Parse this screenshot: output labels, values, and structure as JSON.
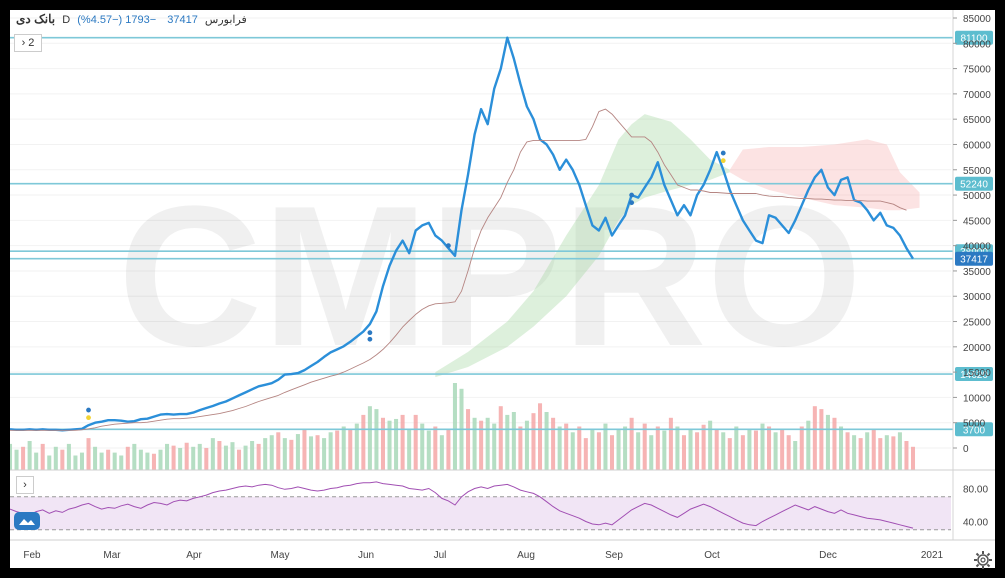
{
  "legend": {
    "symbol": "بانک دی",
    "interval": "D",
    "exchange": "فرابورس",
    "last": "37417",
    "change": "−1793 (−4.57%)"
  },
  "toolbar": {
    "indicators_toggle": "›  2",
    "rsi_toggle": "›"
  },
  "watermark": "CMPRO",
  "chart_data": {
    "type": "line",
    "x_labels": [
      "Feb",
      "Mar",
      "Apr",
      "May",
      "Jun",
      "Jul",
      "Aug",
      "Sep",
      "Oct",
      "Dec",
      "2021"
    ],
    "price_axis": {
      "ylim": [
        0,
        85000
      ],
      "ticks": [
        0,
        5000,
        10000,
        15000,
        20000,
        25000,
        30000,
        35000,
        40000,
        45000,
        50000,
        55000,
        60000,
        65000,
        70000,
        75000,
        80000,
        85000
      ]
    },
    "horizontal_levels": [
      {
        "label": "81100",
        "value": 81100
      },
      {
        "label": "52240",
        "value": 52240
      },
      {
        "label": "38900",
        "value": 38900
      },
      {
        "label": "37417",
        "value": 37417,
        "current": true
      },
      {
        "label": "14620",
        "value": 14620
      },
      {
        "label": "3700",
        "value": 3700
      }
    ],
    "series": [
      {
        "values": [
          3700,
          3600,
          3600,
          3700,
          3600,
          3700,
          3600,
          3600,
          3500,
          3600,
          3700,
          3800,
          4500,
          5000,
          5200,
          5500,
          5500,
          5400,
          5200,
          5300,
          5700,
          5800,
          6200,
          6600,
          6700,
          6600,
          6700,
          6700,
          7000,
          7500,
          7900,
          8300,
          8800,
          9200,
          9800,
          10400,
          11000,
          11600,
          12200,
          12500,
          12800,
          13500,
          14500,
          14600,
          14800,
          15400,
          16200,
          17000,
          18000,
          18900,
          19500,
          20100,
          21000,
          22000,
          23000,
          24500,
          27000,
          32000,
          36000,
          39000,
          41000,
          38500,
          43000,
          44000,
          44500,
          42000,
          41000,
          39500,
          38000,
          47000,
          54000,
          62000,
          67000,
          64000,
          71000,
          75000,
          81100,
          77000,
          72000,
          67500,
          65000,
          61000,
          60000,
          58000,
          55000,
          57000,
          55000,
          52000,
          48000,
          44000,
          43000,
          45500,
          42000,
          44000,
          46000,
          50000,
          49500,
          51500,
          53500,
          56500,
          52000,
          49000,
          46000,
          48000,
          46000,
          50000,
          52000,
          55000,
          58500,
          55000,
          51000,
          48000,
          45000,
          43000,
          41000,
          40500,
          46000,
          45500,
          44000,
          42500,
          45000,
          48000,
          51000,
          53500,
          55000,
          51500,
          50000,
          53000,
          53500,
          49000,
          48500,
          47000,
          45000,
          46500,
          44000,
          43500,
          42000,
          39500,
          37417
        ]
      },
      {
        "values": [
          3500,
          3500,
          3500,
          3500,
          3500,
          3500,
          3500,
          3500,
          3500,
          3500,
          3500,
          3600,
          3800,
          4000,
          4300,
          4500,
          4700,
          4800,
          4900,
          5000,
          5000,
          5100,
          5300,
          5500,
          5700,
          5800,
          5800,
          5900,
          6000,
          6200,
          6400,
          6600,
          6800,
          7100,
          7400,
          7800,
          8200,
          8700,
          9200,
          9600,
          10000,
          10400,
          11000,
          11500,
          12000,
          12500,
          13000,
          13400,
          13800,
          14200,
          14500,
          15000,
          15600,
          16200,
          16800,
          17500,
          18400,
          19500,
          20800,
          22300,
          23900,
          25200,
          26400,
          27400,
          28100,
          28500,
          28600,
          28700,
          28900,
          31000,
          35000,
          39500,
          43000,
          45500,
          47500,
          49500,
          52500,
          55000,
          58500,
          60500,
          60800,
          60800,
          60800,
          60800,
          60800,
          60800,
          60800,
          60800,
          61000,
          63500,
          66500,
          67000,
          66000,
          64500,
          63000,
          61500,
          61500,
          61500,
          60500,
          58500,
          56000,
          54000,
          52000,
          51500,
          51000,
          51000,
          50800,
          50500,
          50500,
          50400,
          50300,
          50300,
          50300,
          50300,
          50300,
          50000,
          49800,
          49700,
          49700,
          49500,
          49400,
          49300,
          49300,
          49200,
          49200,
          49100,
          49000,
          49000,
          48900,
          48900,
          48900,
          48800,
          48800,
          48800,
          48500,
          48200,
          47500,
          47000
        ]
      }
    ],
    "dots": [
      {
        "i": 12,
        "value": 7500,
        "color": "#2b79c2"
      },
      {
        "i": 12,
        "value": 6000,
        "color": "#f2d434"
      },
      {
        "i": 55,
        "value": 22800,
        "color": "#2b79c2"
      },
      {
        "i": 55,
        "value": 21500,
        "color": "#2b79c2"
      },
      {
        "i": 67,
        "value": 40000,
        "color": "#2b79c2"
      },
      {
        "i": 95,
        "value": 50000,
        "color": "#2b79c2"
      },
      {
        "i": 95,
        "value": 48500,
        "color": "#2b79c2"
      },
      {
        "i": 109,
        "value": 58300,
        "color": "#2b79c2"
      },
      {
        "i": 109,
        "value": 56800,
        "color": "#f2d434"
      }
    ],
    "cloud_green": {
      "upper": [
        [
          65,
          15000
        ],
        [
          70,
          19000
        ],
        [
          76,
          25000
        ],
        [
          80,
          31000
        ],
        [
          85,
          42000
        ],
        [
          90,
          52000
        ],
        [
          93,
          61000
        ],
        [
          95,
          64000
        ],
        [
          97,
          66000
        ],
        [
          101,
          64500
        ],
        [
          104,
          61000
        ],
        [
          107,
          57000
        ],
        [
          110,
          55000
        ]
      ],
      "lower": [
        [
          65,
          14000
        ],
        [
          70,
          16000
        ],
        [
          76,
          20000
        ],
        [
          80,
          24000
        ],
        [
          85,
          30000
        ],
        [
          90,
          38000
        ],
        [
          93,
          45000
        ],
        [
          95,
          48000
        ],
        [
          97,
          49500
        ],
        [
          101,
          51000
        ],
        [
          104,
          52000
        ],
        [
          107,
          53000
        ],
        [
          110,
          54500
        ]
      ]
    },
    "cloud_red": {
      "upper": [
        [
          110,
          55000
        ],
        [
          112,
          59000
        ],
        [
          116,
          59500
        ],
        [
          121,
          59500
        ],
        [
          126,
          60000
        ],
        [
          131,
          61000
        ],
        [
          134,
          60000
        ],
        [
          136,
          54500
        ],
        [
          139,
          50500
        ]
      ],
      "lower": [
        [
          110,
          54500
        ],
        [
          112,
          53000
        ],
        [
          116,
          51000
        ],
        [
          121,
          49500
        ],
        [
          126,
          48000
        ],
        [
          131,
          47500
        ],
        [
          134,
          47000
        ],
        [
          136,
          47000
        ],
        [
          139,
          47500
        ]
      ]
    },
    "volume": {
      "colors": {
        "up": "#a8d8b9",
        "down": "#f4a7a7"
      },
      "ticks": [
        0,
        5000,
        10000
      ],
      "values": [
        4500,
        3500,
        4000,
        5000,
        3000,
        4500,
        2500,
        4000,
        3500,
        4500,
        2500,
        3000,
        5500,
        4000,
        3000,
        3500,
        3000,
        2500,
        4000,
        4500,
        3500,
        3000,
        2800,
        3500,
        4500,
        4200,
        3800,
        4700,
        4000,
        4500,
        3800,
        5500,
        5000,
        4200,
        4800,
        3500,
        4200,
        5000,
        4500,
        5500,
        6000,
        6500,
        5500,
        5200,
        6200,
        7000,
        5800,
        6000,
        5500,
        6500,
        6800,
        7500,
        7000,
        8000,
        9500,
        11000,
        10500,
        9000,
        8500,
        8800,
        9500,
        7000,
        9500,
        8000,
        6800,
        7500,
        6000,
        7000,
        15000,
        14000,
        10500,
        9000,
        8500,
        9000,
        8000,
        11000,
        9500,
        10000,
        7500,
        8500,
        9800,
        11500,
        10000,
        9000,
        7500,
        8000,
        6500,
        7500,
        5500,
        7000,
        6500,
        8000,
        6000,
        7000,
        7500,
        9000,
        6500,
        8000,
        6000,
        7500,
        6800,
        9000,
        7500,
        6000,
        7000,
        6500,
        7800,
        8500,
        7000,
        6500,
        5500,
        7500,
        6000,
        7000,
        6800,
        8000,
        7500,
        6500,
        7000,
        6000,
        5000,
        7500,
        8500,
        11000,
        10500,
        9500,
        9000,
        7500,
        6500,
        6000,
        5500,
        6500,
        7000,
        5500,
        6000,
        5800,
        6500,
        5000,
        4000
      ],
      "up": [
        true,
        true,
        false,
        true,
        true,
        false,
        true,
        true,
        false,
        true,
        true,
        true,
        false,
        true,
        true,
        false,
        true,
        true,
        false,
        true,
        true,
        true,
        false,
        true,
        true,
        false,
        true,
        false,
        true,
        true,
        false,
        true,
        false,
        true,
        true,
        false,
        true,
        true,
        false,
        true,
        true,
        false,
        true,
        false,
        true,
        false,
        true,
        false,
        true,
        true,
        false,
        true,
        false,
        true,
        false,
        true,
        true,
        false,
        true,
        true,
        false,
        true,
        false,
        true,
        true,
        false,
        true,
        false,
        true,
        true,
        false,
        true,
        false,
        true,
        true,
        false,
        true,
        true,
        false,
        true,
        false,
        false,
        true,
        false,
        true,
        false,
        true,
        false,
        false,
        true,
        false,
        true,
        false,
        true,
        true,
        false,
        true,
        false,
        true,
        false,
        true,
        false,
        true,
        false,
        true,
        false,
        false,
        true,
        false,
        true,
        false,
        true,
        false,
        true,
        false,
        true,
        false,
        true,
        false,
        false,
        true,
        false,
        true,
        false,
        false,
        true,
        false,
        true,
        false,
        true,
        false,
        true,
        false,
        false,
        true,
        false,
        true,
        false,
        false
      ]
    },
    "rsi": {
      "ticks": [
        80,
        40
      ],
      "tick_labels": [
        "80.00",
        "40.00"
      ],
      "band": [
        30,
        70
      ],
      "ylim": [
        20,
        100
      ],
      "values": [
        55,
        52,
        50,
        48,
        52,
        54,
        50,
        53,
        51,
        55,
        57,
        60,
        62,
        58,
        55,
        57,
        56,
        59,
        61,
        58,
        56,
        60,
        63,
        62,
        60,
        64,
        66,
        65,
        68,
        70,
        72,
        75,
        77,
        78,
        80,
        82,
        83,
        82,
        84,
        85,
        84,
        81,
        79,
        80,
        82,
        80,
        78,
        77,
        78,
        80,
        81,
        83,
        84,
        86,
        87,
        87,
        88,
        86,
        85,
        84,
        83,
        80,
        79,
        78,
        80,
        75,
        68,
        65,
        60,
        70,
        76,
        80,
        82,
        80,
        83,
        84,
        85,
        82,
        78,
        76,
        74,
        70,
        64,
        58,
        53,
        50,
        47,
        44,
        40,
        37,
        36,
        38,
        36,
        42,
        48,
        54,
        58,
        62,
        60,
        56,
        52,
        48,
        45,
        50,
        55,
        58,
        61,
        58,
        54,
        50,
        46,
        42,
        38,
        36,
        35,
        40,
        44,
        48,
        52,
        56,
        60,
        57,
        54,
        58,
        55,
        52,
        50,
        54,
        50,
        48,
        46,
        44,
        43,
        42,
        40,
        38,
        36,
        34,
        32
      ]
    }
  }
}
